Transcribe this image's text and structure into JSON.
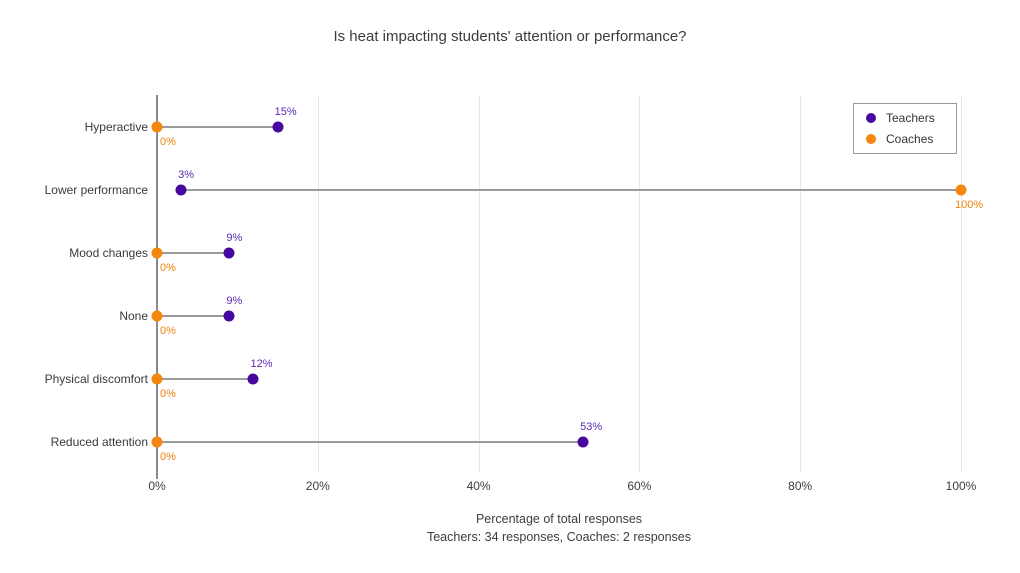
{
  "title": "Is heat impacting students' attention or performance?",
  "axis": {
    "xlabel_line1": "Percentage of total responses",
    "xlabel_line2": "Teachers: 34 responses, Coaches: 2 responses"
  },
  "legend": {
    "items": [
      {
        "label": "Teachers",
        "color": "#46089e"
      },
      {
        "label": "Coaches",
        "color": "#f5860f"
      }
    ]
  },
  "colors": {
    "teachers_dot": "#46089e",
    "teachers_label": "#5b2ab3",
    "coaches_dot": "#f5860f",
    "coaches_label": "#ef820d",
    "stem": "#9a9a9a",
    "gridline": "#e7e7e7",
    "zero_axis": "#8a8a8a"
  },
  "chart_data": {
    "type": "scatter",
    "subtype": "lollipop-dot-plot",
    "title": "Is heat impacting students' attention or performance?",
    "xlabel": "Percentage of total responses",
    "xlabel_note": "Teachers: 34 responses, Coaches: 2 responses",
    "categories": [
      "Hyperactive",
      "Lower performance",
      "Mood changes",
      "None",
      "Physical discomfort",
      "Reduced attention"
    ],
    "series": [
      {
        "name": "Teachers",
        "color": "#46089e",
        "label_color": "#5b2ab3",
        "values": [
          15,
          3,
          9,
          9,
          12,
          53
        ],
        "labels": [
          "15%",
          "3%",
          "9%",
          "9%",
          "12%",
          "53%"
        ]
      },
      {
        "name": "Coaches",
        "color": "#f5860f",
        "label_color": "#ef820d",
        "values": [
          0,
          100,
          0,
          0,
          0,
          0
        ],
        "labels": [
          "0%",
          "100%",
          "0%",
          "0%",
          "0%",
          "0%"
        ]
      }
    ],
    "xlim": [
      0,
      100
    ],
    "x_tick_values": [
      0,
      20,
      40,
      60,
      80,
      100
    ],
    "x_tick_labels": [
      "0%",
      "20%",
      "40%",
      "60%",
      "80%",
      "100%"
    ],
    "grid": "vertical",
    "legend_position": "top-right"
  }
}
